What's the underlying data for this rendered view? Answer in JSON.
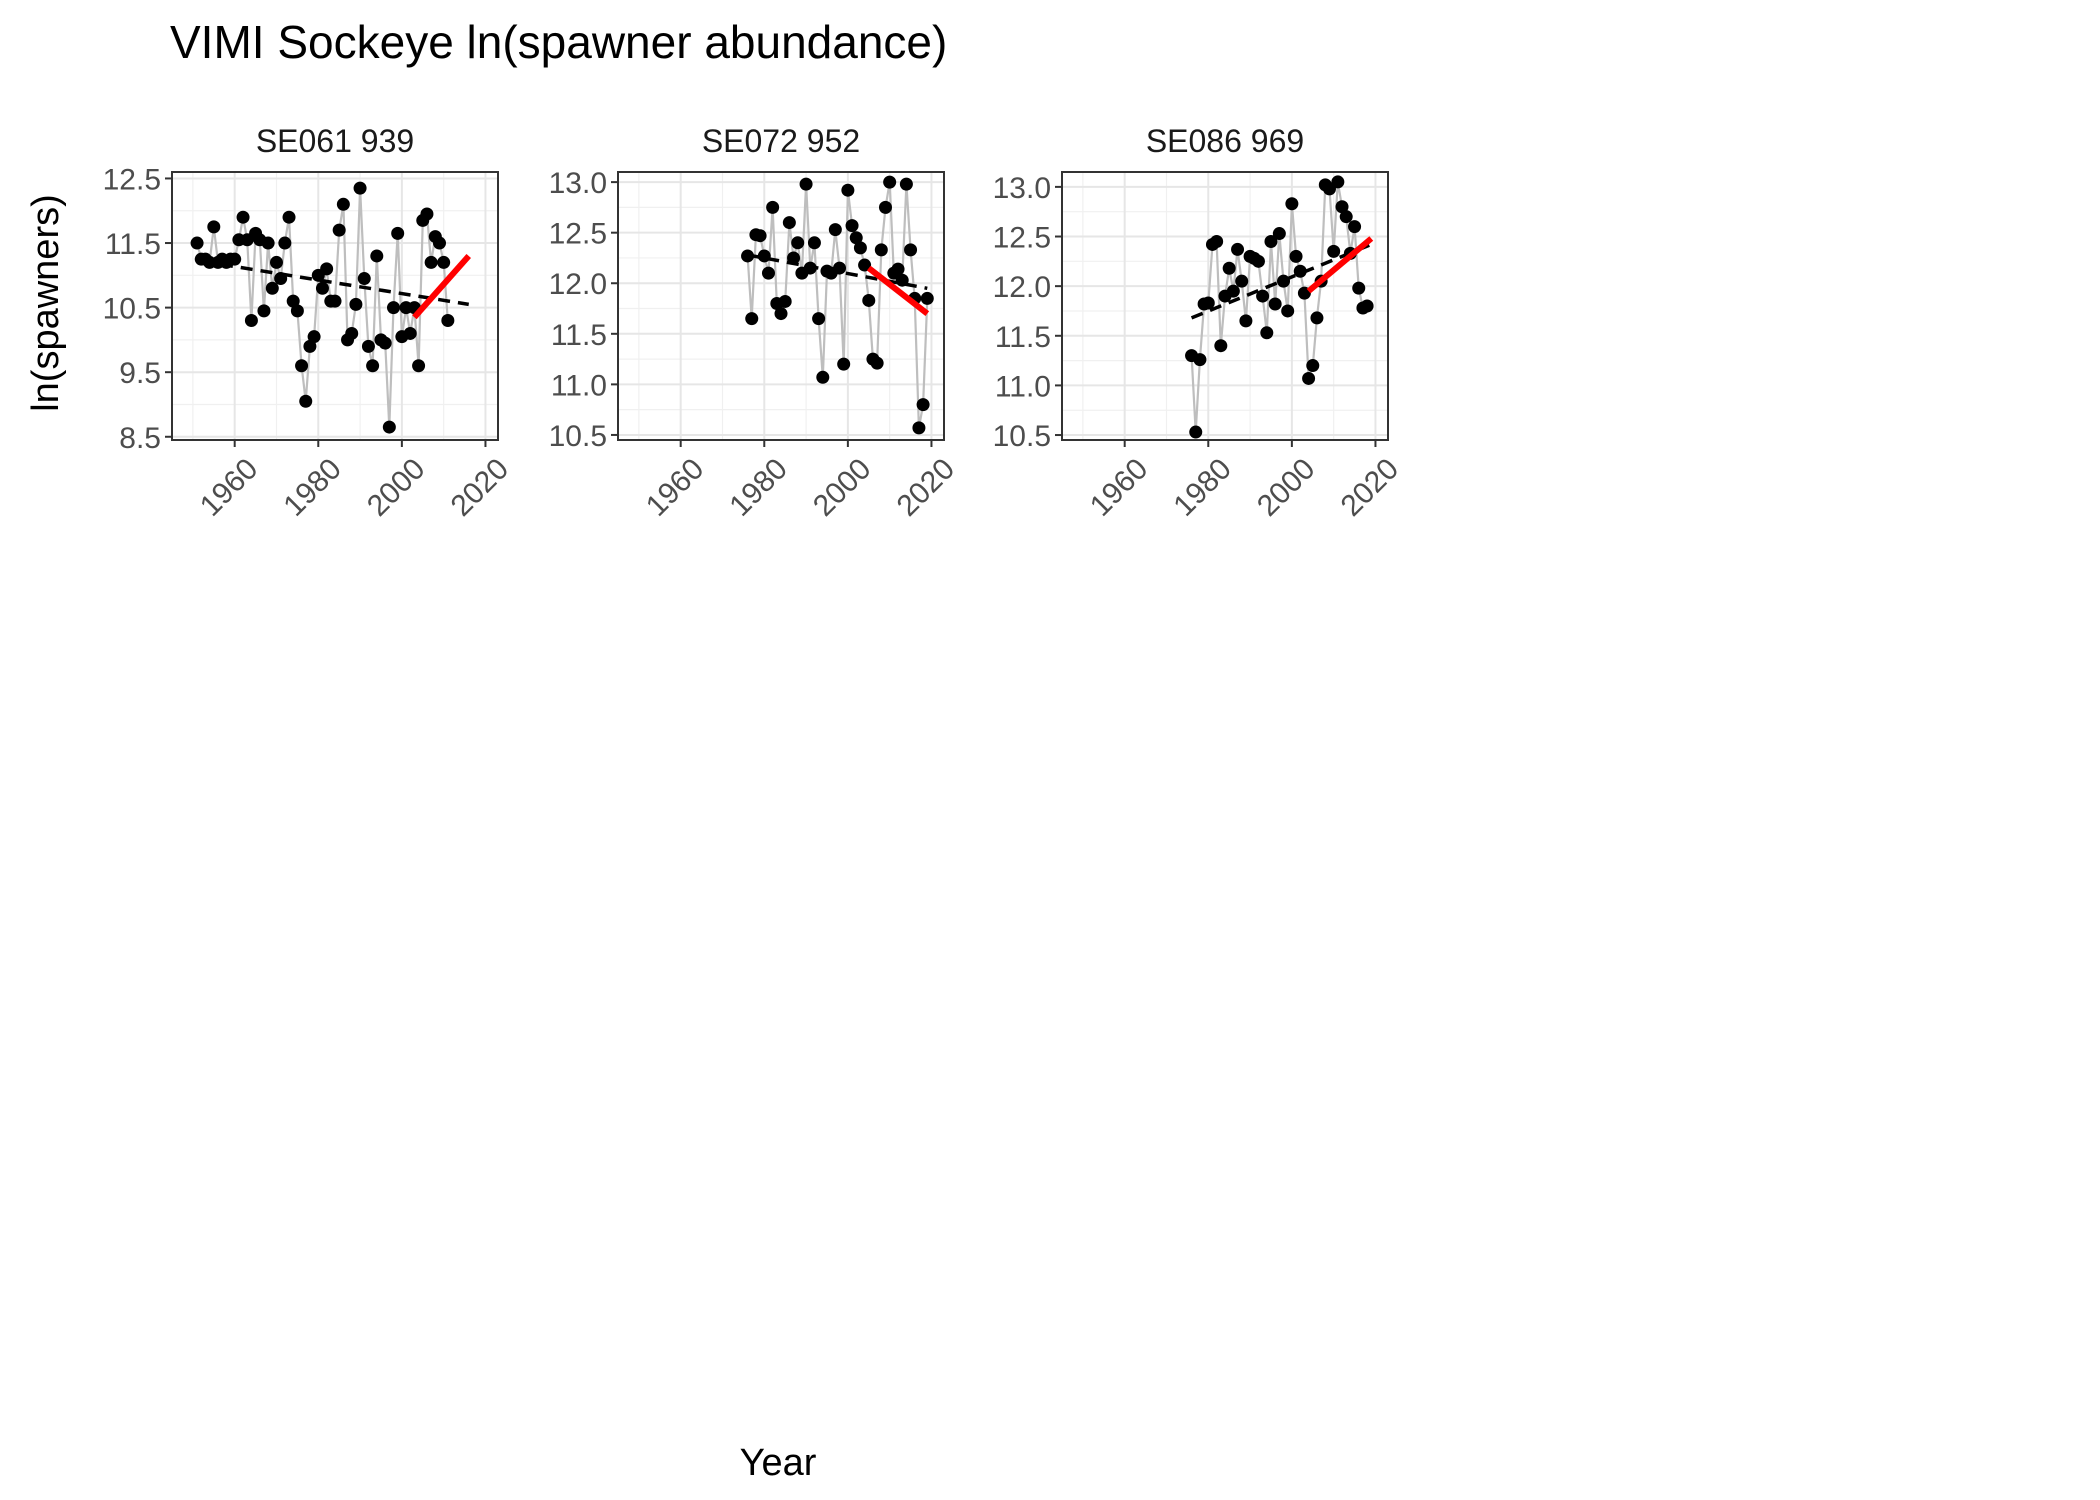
{
  "chart_data": {
    "type": "line",
    "title": "VIMI Sockeye ln(spawner abundance)",
    "xlabel": "Year",
    "ylabel": "ln(spawners)",
    "xlim": [
      1945,
      2023
    ],
    "x_ticks": [
      1960,
      1980,
      2000,
      2020
    ],
    "grid": true,
    "colors": {
      "points": "#000000",
      "connector": "#bebebe",
      "long_trend": "#000000",
      "recent_trend": "#ff0000"
    },
    "panels": [
      {
        "name": "SE061 939",
        "ylim": [
          8.45,
          12.6
        ],
        "y_ticks": [
          "8.5",
          "9.5",
          "10.5",
          "11.5",
          "12.5"
        ],
        "y_tick_values": [
          8.5,
          9.5,
          10.5,
          11.5,
          12.5
        ],
        "x": [
          1951,
          1952,
          1953,
          1954,
          1955,
          1956,
          1957,
          1958,
          1959,
          1960,
          1961,
          1962,
          1963,
          1964,
          1965,
          1966,
          1967,
          1968,
          1969,
          1970,
          1971,
          1972,
          1973,
          1974,
          1975,
          1976,
          1977,
          1978,
          1979,
          1980,
          1981,
          1982,
          1983,
          1984,
          1985,
          1986,
          1987,
          1988,
          1989,
          1990,
          1991,
          1992,
          1993,
          1994,
          1995,
          1996,
          1997,
          1998,
          1999,
          2000,
          2001,
          2002,
          2003,
          2004,
          2005,
          2006,
          2007,
          2008,
          2009,
          2010,
          2011,
          2012,
          2013,
          2014,
          2015,
          2016
        ],
        "y": [
          11.5,
          11.25,
          11.25,
          11.2,
          11.75,
          11.2,
          11.25,
          11.2,
          11.25,
          11.25,
          11.55,
          11.9,
          11.55,
          10.3,
          11.65,
          11.55,
          10.45,
          11.5,
          10.8,
          11.2,
          10.95,
          11.5,
          11.9,
          10.6,
          10.45,
          9.6,
          9.05,
          9.9,
          10.05,
          11.0,
          10.8,
          11.1,
          10.6,
          10.6,
          11.7,
          12.1,
          10.0,
          10.1,
          10.55,
          12.35,
          10.95,
          9.9,
          9.6,
          11.3,
          10.0,
          9.95,
          8.65,
          10.5,
          11.65,
          10.05,
          10.5,
          10.1,
          10.5,
          9.6,
          11.85,
          11.95,
          11.2,
          11.6,
          11.5,
          11.2,
          10.3,
          null,
          null,
          null,
          null,
          null
        ],
        "long_trend": {
          "x": [
            1952,
            2016
          ],
          "y": [
            11.22,
            10.55
          ]
        },
        "recent_trend": {
          "x": [
            2003,
            2016
          ],
          "y": [
            10.35,
            11.3
          ]
        }
      },
      {
        "name": "SE072 952",
        "ylim": [
          10.45,
          13.1
        ],
        "y_ticks": [
          "10.5",
          "11.0",
          "11.5",
          "12.0",
          "12.5",
          "13.0"
        ],
        "y_tick_values": [
          10.5,
          11.0,
          11.5,
          12.0,
          12.5,
          13.0
        ],
        "x": [
          1976,
          1977,
          1978,
          1979,
          1980,
          1981,
          1982,
          1983,
          1984,
          1985,
          1986,
          1987,
          1988,
          1989,
          1990,
          1991,
          1992,
          1993,
          1994,
          1995,
          1996,
          1997,
          1998,
          1999,
          2000,
          2001,
          2002,
          2003,
          2004,
          2005,
          2006,
          2007,
          2008,
          2009,
          2010,
          2011,
          2012,
          2013,
          2014,
          2015,
          2016,
          2017,
          2018,
          2019
        ],
        "y": [
          12.27,
          11.65,
          12.48,
          12.47,
          12.27,
          12.1,
          12.75,
          11.8,
          11.7,
          11.82,
          12.6,
          12.25,
          12.4,
          12.1,
          12.98,
          12.15,
          12.4,
          11.65,
          11.07,
          12.12,
          12.1,
          12.53,
          12.15,
          11.2,
          12.92,
          12.57,
          12.45,
          12.35,
          12.18,
          11.83,
          11.25,
          11.21,
          12.33,
          12.75,
          13.0,
          12.1,
          12.14,
          12.03,
          12.98,
          12.33,
          11.85,
          10.57,
          10.8,
          11.85
        ],
        "long_trend": {
          "x": [
            1976,
            2019
          ],
          "y": [
            12.28,
            11.95
          ]
        },
        "recent_trend": {
          "x": [
            2005,
            2019
          ],
          "y": [
            12.15,
            11.7
          ]
        }
      },
      {
        "name": "SE086 969",
        "ylim": [
          10.45,
          13.15
        ],
        "y_ticks": [
          "10.5",
          "11.0",
          "11.5",
          "12.0",
          "12.5",
          "13.0"
        ],
        "y_tick_values": [
          10.5,
          11.0,
          11.5,
          12.0,
          12.5,
          13.0
        ],
        "x": [
          1976,
          1977,
          1978,
          1979,
          1980,
          1981,
          1982,
          1983,
          1984,
          1985,
          1986,
          1987,
          1988,
          1989,
          1990,
          1991,
          1992,
          1993,
          1994,
          1995,
          1996,
          1997,
          1998,
          1999,
          2000,
          2001,
          2002,
          2003,
          2004,
          2005,
          2006,
          2007,
          2008,
          2009,
          2010,
          2011,
          2012,
          2013,
          2014,
          2015,
          2016,
          2017,
          2018,
          2019
        ],
        "y": [
          11.3,
          10.53,
          11.26,
          11.82,
          11.83,
          12.42,
          12.45,
          11.4,
          11.9,
          12.18,
          11.95,
          12.37,
          12.05,
          11.65,
          12.3,
          12.28,
          12.25,
          11.9,
          11.53,
          12.45,
          11.82,
          12.53,
          12.05,
          11.75,
          12.83,
          12.3,
          12.15,
          11.93,
          11.07,
          11.2,
          11.68,
          12.05,
          13.02,
          12.98,
          12.35,
          13.05,
          12.8,
          12.7,
          12.33,
          12.6,
          11.98,
          11.78,
          11.8,
          null
        ],
        "long_trend": {
          "x": [
            1976,
            2019
          ],
          "y": [
            11.68,
            12.42
          ]
        },
        "recent_trend": {
          "x": [
            2004,
            2019
          ],
          "y": [
            11.95,
            12.48
          ]
        }
      }
    ]
  }
}
